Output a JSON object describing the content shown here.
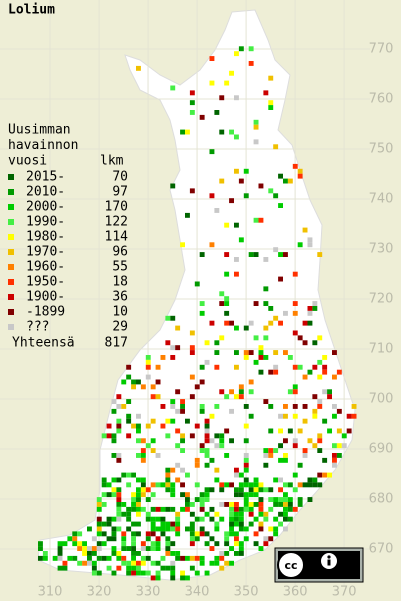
{
  "map": {
    "title": "Lolium",
    "legend": {
      "heading": [
        "Uusimman",
        "havainnon",
        "vuosi"
      ],
      "count_header": "lkm",
      "rows": [
        {
          "label": "2015-",
          "count": 70,
          "color": "#006400"
        },
        {
          "label": "2010-",
          "count": 97,
          "color": "#009a00"
        },
        {
          "label": "2000-",
          "count": 170,
          "color": "#00cc00"
        },
        {
          "label": "1990-",
          "count": 122,
          "color": "#44ee44"
        },
        {
          "label": "1980-",
          "count": 114,
          "color": "#ffff00"
        },
        {
          "label": "1970-",
          "count": 96,
          "color": "#f0c000"
        },
        {
          "label": "1960-",
          "count": 55,
          "color": "#ff8000"
        },
        {
          "label": "1950-",
          "count": 18,
          "color": "#ff3000"
        },
        {
          "label": "1900-",
          "count": 36,
          "color": "#cc0000"
        },
        {
          "label": "-1899",
          "count": 10,
          "color": "#800000"
        },
        {
          "label": "???",
          "count": 29,
          "color": "#c8c8c8"
        }
      ],
      "total_label": "Yhteensä",
      "total": 817
    },
    "xlim": [
      299.8,
      381.6
    ],
    "xticks": [
      310,
      320,
      330,
      340,
      350,
      360,
      370
    ],
    "ylim": [
      659.6,
      779.8
    ],
    "yticks": [
      670,
      680,
      690,
      700,
      710,
      720,
      730,
      740,
      750,
      760,
      770
    ]
  }
}
